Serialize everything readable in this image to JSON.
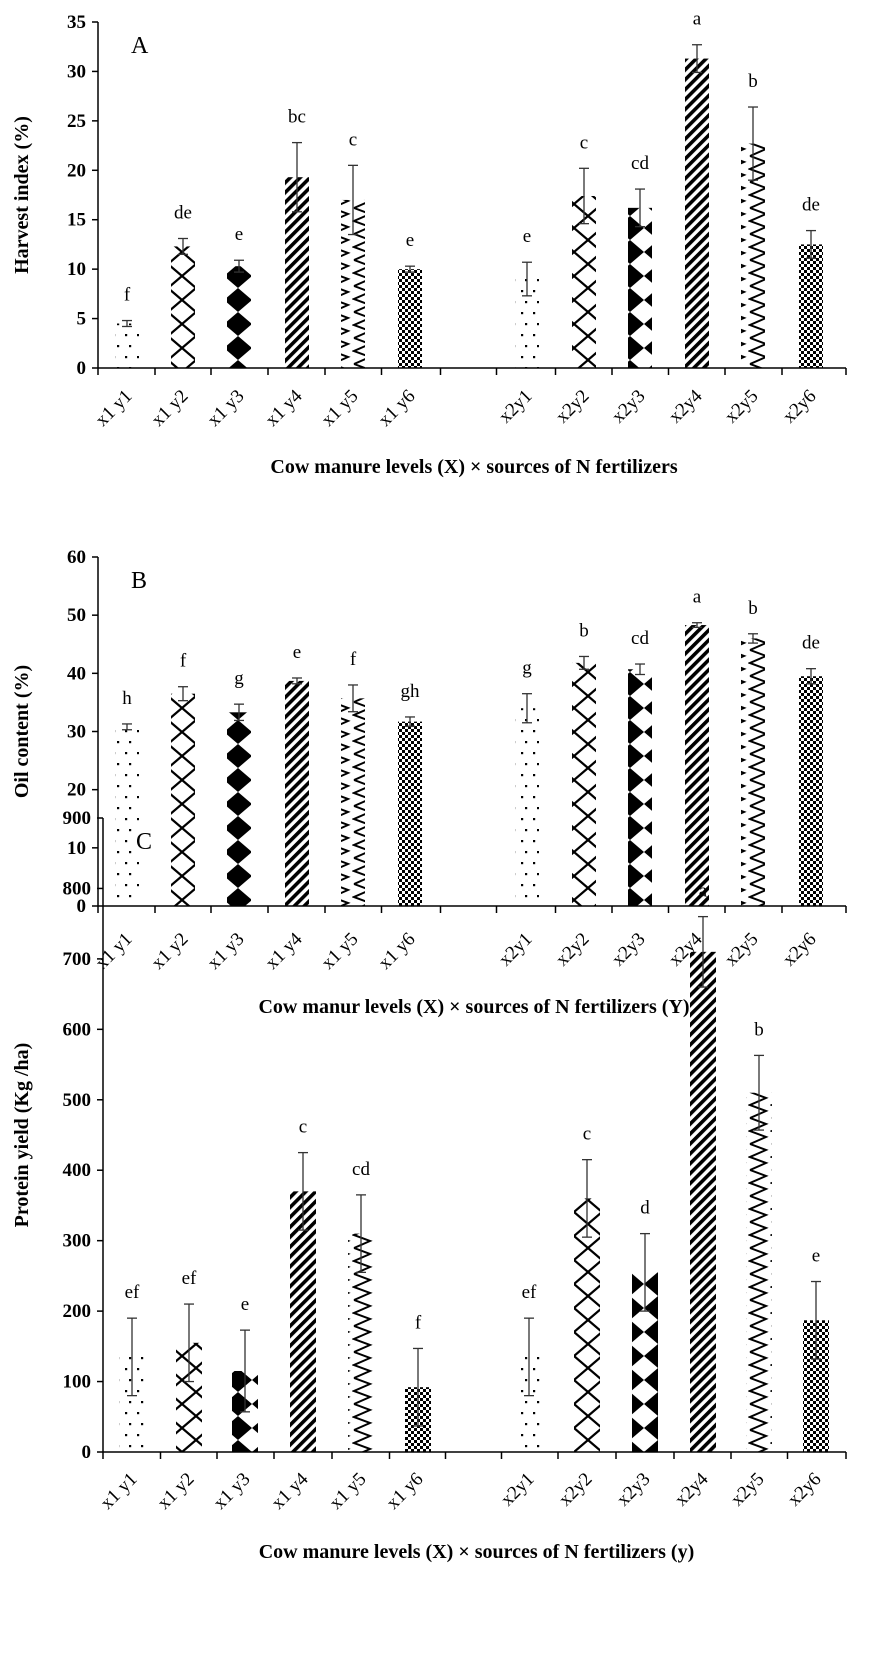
{
  "chart_data": [
    {
      "type": "bar",
      "panel": "A",
      "categories": [
        "x1 y1",
        "x1 y2",
        "x1 y3",
        "x1 y4",
        "x1 y5",
        "x1 y6",
        "x2y1",
        "x2y2",
        "x2y3",
        "x2y4",
        "x2y5",
        "x2y6"
      ],
      "values": [
        4.5,
        12.3,
        10.3,
        19.3,
        17.0,
        10.0,
        9.0,
        17.4,
        16.2,
        31.3,
        22.7,
        12.5
      ],
      "errors": [
        0.3,
        0.8,
        0.6,
        3.5,
        3.5,
        0.3,
        1.7,
        2.8,
        1.9,
        1.4,
        3.7,
        1.4
      ],
      "letters": [
        "f",
        "de",
        "e",
        "bc",
        "c",
        "e",
        "e",
        "c",
        "cd",
        "a",
        "b",
        "de"
      ],
      "patterns": [
        "dots",
        "zigzag",
        "diamond",
        "diagonal",
        "wave",
        "checker",
        "dots",
        "zigzag",
        "diamond",
        "diagonal",
        "wave",
        "checker"
      ],
      "ylabel": "Harvest index (%)",
      "xlabel": "Cow manure levels (X) × sources of N fertilizers",
      "ylim": [
        0,
        35
      ],
      "yticks": [
        0,
        5,
        10,
        15,
        20,
        25,
        30,
        35
      ],
      "grid": false
    },
    {
      "type": "bar",
      "panel": "B",
      "categories": [
        "x1 y1",
        "x1 y2",
        "x1 y3",
        "x1 y4",
        "x1 y5",
        "x1 y6",
        "x2y1",
        "x2y2",
        "x2y3",
        "x2y4",
        "x2y5",
        "x2y6"
      ],
      "values": [
        30.8,
        36.5,
        33.3,
        38.7,
        35.7,
        31.7,
        34.0,
        41.8,
        40.7,
        48.3,
        46.0,
        39.5
      ],
      "errors": [
        0.5,
        1.2,
        1.4,
        0.5,
        2.3,
        0.8,
        2.5,
        1.1,
        0.9,
        0.4,
        0.8,
        1.3
      ],
      "letters": [
        "h",
        "f",
        "g",
        "e",
        "f",
        "gh",
        "g",
        "b",
        "cd",
        "a",
        "b",
        "de"
      ],
      "patterns": [
        "dots",
        "zigzag",
        "diamond",
        "diagonal",
        "wave",
        "checker",
        "dots",
        "zigzag",
        "diamond",
        "diagonal",
        "wave",
        "checker"
      ],
      "ylabel": "Oil content (%)",
      "xlabel": "Cow manur levels (X) × sources of N fertilizers (Y)",
      "ylim": [
        0,
        60
      ],
      "yticks": [
        0,
        10,
        20,
        30,
        40,
        50,
        60
      ],
      "grid": false
    },
    {
      "type": "bar",
      "panel": "C",
      "categories": [
        "x1 y1",
        "x1 y2",
        "x1 y3",
        "x1 y4",
        "x1 y5",
        "x1 y6",
        "x2y1",
        "x2y2",
        "x2y3",
        "x2y4",
        "x2y5",
        "x2y6"
      ],
      "values": [
        135,
        155,
        115,
        370,
        310,
        92,
        135,
        360,
        255,
        710,
        510,
        187
      ],
      "errors": [
        55,
        55,
        58,
        55,
        55,
        55,
        55,
        55,
        55,
        50,
        53,
        55
      ],
      "letters": [
        "ef",
        "ef",
        "e",
        "c",
        "cd",
        "f",
        "ef",
        "c",
        "d",
        "a",
        "b",
        "e"
      ],
      "patterns": [
        "dots",
        "zigzag",
        "diamond",
        "diagonal",
        "wave",
        "checker",
        "dots",
        "zigzag",
        "diamond",
        "diagonal",
        "wave",
        "checker"
      ],
      "ylabel": "Protein yield (Kg /ha)",
      "xlabel": "Cow manure levels (X) × sources of N fertilizers (y)",
      "ylim": [
        0,
        900
      ],
      "yticks": [
        0,
        100,
        200,
        300,
        400,
        500,
        600,
        700,
        800,
        900
      ],
      "grid": false
    }
  ]
}
